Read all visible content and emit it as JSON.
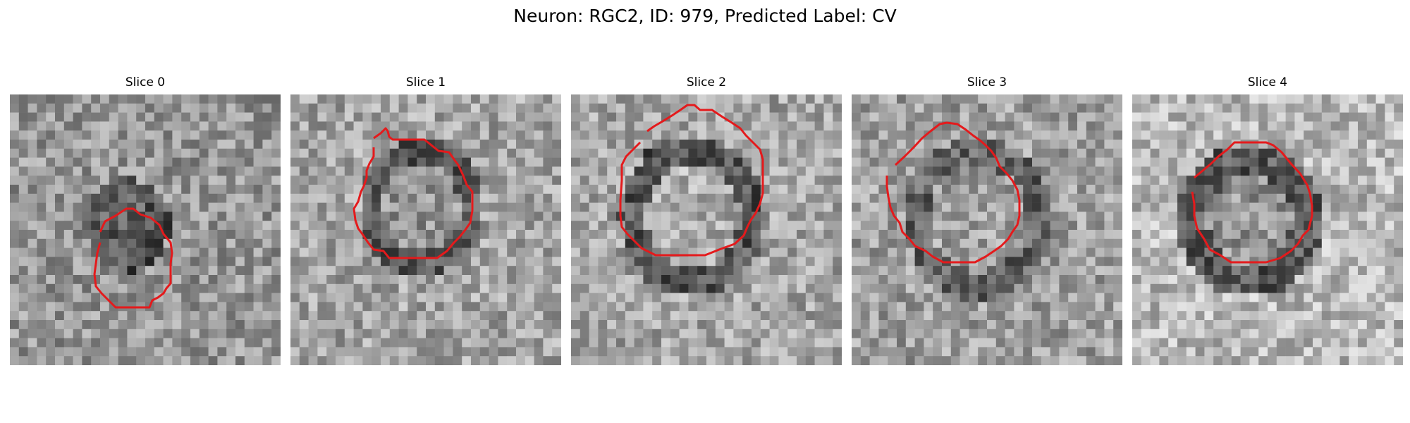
{
  "figure": {
    "title": "Neuron: RGC2, ID: 979, Predicted Label: CV",
    "contour_color": "#e41a1c",
    "image_colormap": "gray",
    "grid_size": 30
  },
  "panels": [
    {
      "title": "Slice 0"
    },
    {
      "title": "Slice 1"
    },
    {
      "title": "Slice 2"
    },
    {
      "title": "Slice 3"
    },
    {
      "title": "Slice 4"
    }
  ]
}
